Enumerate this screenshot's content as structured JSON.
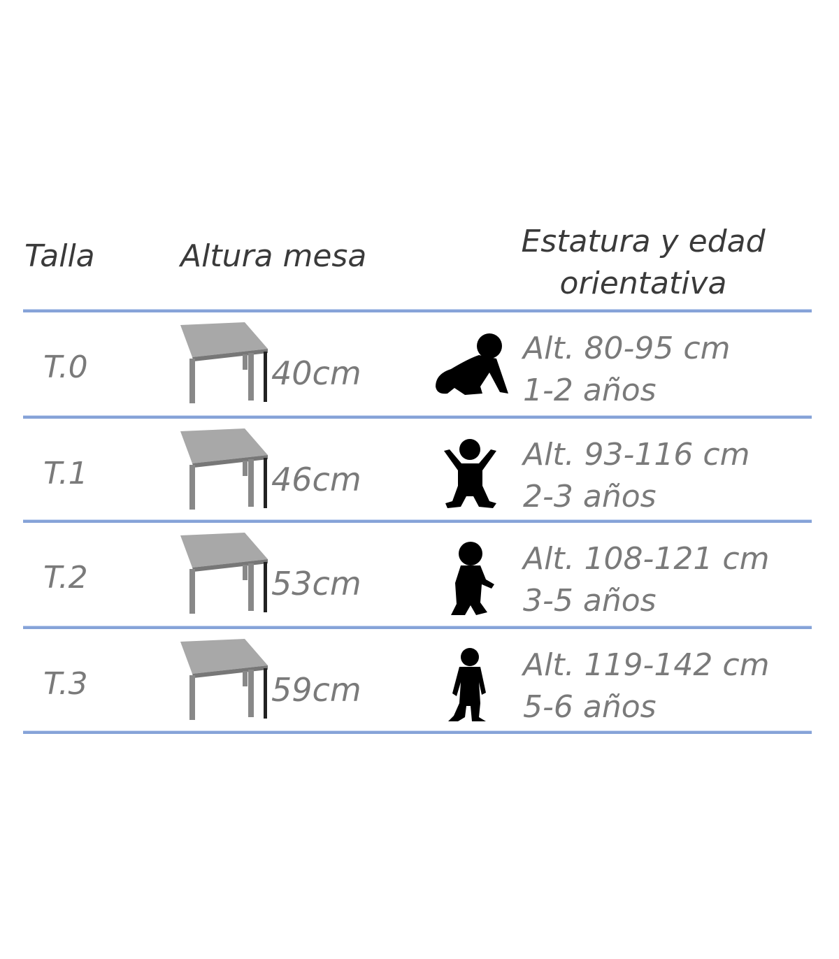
{
  "header": {
    "size": "Talla",
    "table_height": "Altura mesa",
    "stature_line1": "Estatura y edad",
    "stature_line2": "orientativa"
  },
  "colors": {
    "divider": "#86a3d8",
    "header_text": "#3a3a3a",
    "body_text": "#7a7a7a"
  },
  "rows": [
    {
      "size": "T.0",
      "height": "40cm",
      "stature": "Alt. 80-95 cm",
      "age": "1-2 años",
      "icon": "crawling-baby-icon"
    },
    {
      "size": "T.1",
      "height": "46cm",
      "stature": "Alt. 93-116 cm",
      "age": "2-3 años",
      "icon": "toddler-arms-up-icon"
    },
    {
      "size": "T.2",
      "height": "53cm",
      "stature": "Alt. 108-121 cm",
      "age": "3-5 años",
      "icon": "child-standing-icon"
    },
    {
      "size": "T.3",
      "height": "59cm",
      "stature": "Alt. 119-142 cm",
      "age": "5-6 años",
      "icon": "kid-standing-icon"
    }
  ]
}
